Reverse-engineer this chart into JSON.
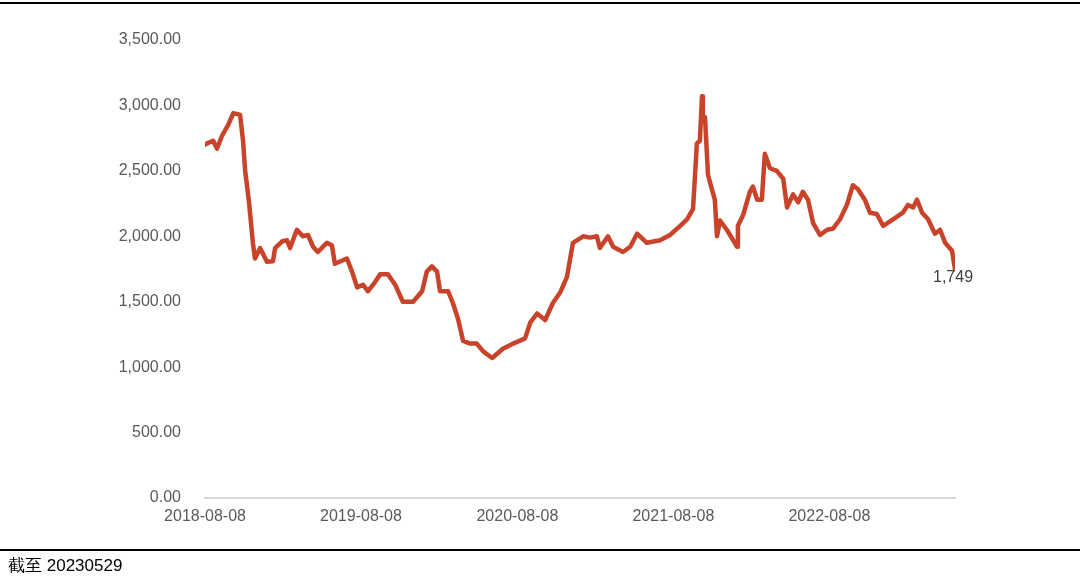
{
  "chart_data": {
    "type": "line",
    "annotations": [
      {
        "text": "1,749",
        "x": "2023-05-29",
        "y": 1749
      },
      "截至 20230529"
    ],
    "xlim": [
      "2018-08-08",
      "2023-05-29"
    ],
    "xticks": [
      "2018-08-08",
      "2019-08-08",
      "2020-08-08",
      "2021-08-08",
      "2022-08-08"
    ],
    "ylim": [
      0,
      3500
    ],
    "yticks": [
      {
        "value": 0,
        "label": "0.00"
      },
      {
        "value": 500,
        "label": "500.00"
      },
      {
        "value": 1000,
        "label": "1,000.00"
      },
      {
        "value": 1500,
        "label": "1,500.00"
      },
      {
        "value": 2000,
        "label": "2,000.00"
      },
      {
        "value": 2500,
        "label": "2,500.00"
      },
      {
        "value": 3000,
        "label": "3,000.00"
      },
      {
        "value": 3500,
        "label": "3,500.00"
      }
    ],
    "grid": false,
    "legend": false,
    "marker": "none",
    "line_style": "solid",
    "series": [
      {
        "color": "#c8432a",
        "x": [
          "2018-08-08",
          "2018-08-13",
          "2018-08-27",
          "2018-09-05",
          "2018-09-17",
          "2018-10-01",
          "2018-10-13",
          "2018-10-29",
          "2018-11-05",
          "2018-11-10",
          "2018-11-19",
          "2018-11-28",
          "2018-12-03",
          "2018-12-15",
          "2018-12-31",
          "2019-01-14",
          "2019-01-19",
          "2019-02-04",
          "2019-02-16",
          "2019-02-23",
          "2019-03-11",
          "2019-03-25",
          "2019-04-06",
          "2019-04-18",
          "2019-04-29",
          "2019-05-20",
          "2019-06-01",
          "2019-06-08",
          "2019-07-06",
          "2019-07-18",
          "2019-07-30",
          "2019-08-13",
          "2019-08-24",
          "2019-09-10",
          "2019-09-22",
          "2019-10-10",
          "2019-10-27",
          "2019-11-14",
          "2019-12-08",
          "2019-12-29",
          "2020-01-09",
          "2020-01-21",
          "2020-02-02",
          "2020-02-09",
          "2020-02-28",
          "2020-03-10",
          "2020-03-22",
          "2020-04-03",
          "2020-04-19",
          "2020-05-05",
          "2020-05-20",
          "2020-06-10",
          "2020-07-05",
          "2020-07-29",
          "2020-08-26",
          "2020-09-07",
          "2020-09-23",
          "2020-10-12",
          "2020-10-30",
          "2020-11-16",
          "2020-12-02",
          "2020-12-16",
          "2021-01-09",
          "2021-01-25",
          "2021-02-10",
          "2021-02-17",
          "2021-03-08",
          "2021-03-20",
          "2021-04-12",
          "2021-04-29",
          "2021-05-15",
          "2021-06-07",
          "2021-07-08",
          "2021-07-31",
          "2021-08-24",
          "2021-09-09",
          "2021-09-23",
          "2021-10-02",
          "2021-10-09",
          "2021-10-14",
          "2021-10-16",
          "2021-10-21",
          "2021-10-28",
          "2021-11-06",
          "2021-11-13",
          "2021-11-18",
          "2021-11-25",
          "2021-12-11",
          "2021-12-26",
          "2022-01-04",
          "2022-01-06",
          "2022-01-18",
          "2022-02-03",
          "2022-02-10",
          "2022-02-20",
          "2022-03-03",
          "2022-03-10",
          "2022-03-22",
          "2022-04-07",
          "2022-04-22",
          "2022-05-01",
          "2022-05-15",
          "2022-05-27",
          "2022-06-07",
          "2022-06-19",
          "2022-07-01",
          "2022-07-17",
          "2022-08-03",
          "2022-08-17",
          "2022-09-02",
          "2022-09-18",
          "2022-10-02",
          "2022-10-14",
          "2022-10-30",
          "2022-11-11",
          "2022-11-27",
          "2022-12-12",
          "2023-01-04",
          "2023-01-27",
          "2023-02-08",
          "2023-02-20",
          "2023-03-01",
          "2023-03-13",
          "2023-03-27",
          "2023-04-12",
          "2023-04-24",
          "2023-05-06",
          "2023-05-22",
          "2023-05-29"
        ],
        "values": [
          2700,
          2710,
          2730,
          2670,
          2770,
          2850,
          2940,
          2930,
          2730,
          2500,
          2260,
          1950,
          1830,
          1910,
          1805,
          1810,
          1910,
          1960,
          1970,
          1910,
          2050,
          2000,
          2010,
          1920,
          1880,
          1950,
          1930,
          1790,
          1830,
          1730,
          1610,
          1630,
          1580,
          1650,
          1710,
          1710,
          1630,
          1500,
          1500,
          1580,
          1730,
          1770,
          1730,
          1580,
          1580,
          1490,
          1370,
          1200,
          1180,
          1180,
          1120,
          1070,
          1140,
          1180,
          1220,
          1340,
          1410,
          1360,
          1490,
          1570,
          1690,
          1950,
          2000,
          1990,
          2000,
          1910,
          2000,
          1920,
          1880,
          1920,
          2020,
          1950,
          1970,
          2010,
          2080,
          2130,
          2210,
          2710,
          2730,
          3070,
          2890,
          2910,
          2470,
          2360,
          2280,
          2000,
          2120,
          2050,
          1970,
          1920,
          2080,
          2160,
          2340,
          2380,
          2280,
          2280,
          2630,
          2520,
          2500,
          2440,
          2220,
          2320,
          2260,
          2340,
          2280,
          2100,
          2010,
          2050,
          2060,
          2130,
          2240,
          2390,
          2360,
          2280,
          2180,
          2170,
          2080,
          2130,
          2180,
          2240,
          2220,
          2280,
          2180,
          2130,
          2020,
          2050,
          1950,
          1890,
          1749
        ]
      }
    ]
  }
}
